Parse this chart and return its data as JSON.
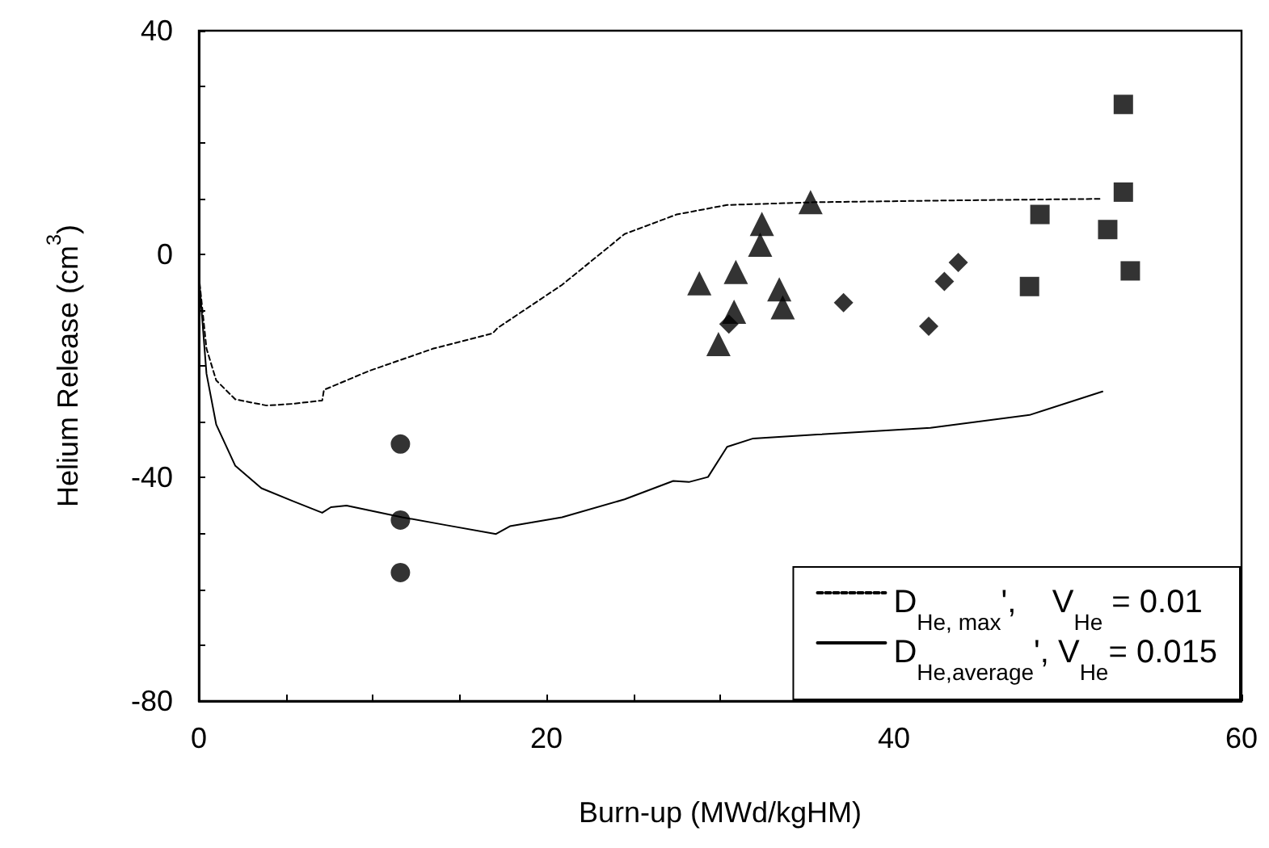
{
  "chart_data": {
    "type": "scatter",
    "xlabel": "Burn-up (MWd/kgHM)",
    "ylabel": "Helium Release (cm$^{3}$)",
    "xlim": [
      0,
      60
    ],
    "xticks": [
      0,
      {
        "value": 5,
        "label": null
      },
      {
        "value": 10,
        "label": null
      },
      {
        "value": 15,
        "label": null
      },
      20,
      {
        "value": 25,
        "label": null
      },
      {
        "value": 30,
        "label": null
      },
      {
        "value": 35,
        "label": null
      },
      40,
      {
        "value": 45,
        "label": null
      },
      {
        "value": 50,
        "label": null
      },
      {
        "value": 55,
        "label": null
      },
      60
    ],
    "ylim": [
      -80,
      40
    ],
    "yticks": [
      -80,
      {
        "value": -70,
        "label": null
      },
      {
        "value": -60,
        "label": null
      },
      {
        "value": -50,
        "label": null
      },
      -40,
      {
        "value": -30,
        "label": null
      },
      {
        "value": -20,
        "label": null
      },
      {
        "value": -10,
        "label": null
      },
      0,
      {
        "value": 10,
        "label": null
      },
      {
        "value": 20,
        "label": null
      },
      {
        "value": 30,
        "label": null
      },
      40
    ],
    "grid": false,
    "legend": "bottom right",
    "series": [
      {
        "type": "line",
        "name": "D$_{He, max}$',    V$_{He}$ = 0.01",
        "color": "#000000",
        "line_style": "dashed",
        "marker": "none",
        "x": [
          0,
          0.44,
          1.0,
          2.1,
          3.9,
          5.4,
          7.1,
          7.2,
          9.8,
          13.5,
          16.9,
          17.2,
          20.9,
          24.5,
          27.5,
          30.4,
          35.6,
          43,
          52
        ],
        "values": [
          -3.8,
          -16.9,
          -22.6,
          -26,
          -27.1,
          -26.8,
          -26.2,
          -24.3,
          -20.9,
          -16.9,
          -14.2,
          -13.2,
          -5.5,
          3.6,
          7.1,
          8.8,
          9.3,
          9.6,
          9.9
        ]
      },
      {
        "type": "line",
        "name": "D$_{He,average}$', V$_{He}$= 0.015",
        "color": "#000000",
        "line_style": "solid",
        "marker": "none",
        "x": [
          0,
          0.44,
          1.0,
          2.1,
          3.6,
          5.4,
          7.1,
          7.6,
          8.5,
          11.7,
          14.2,
          17.1,
          17.9,
          20.9,
          24.5,
          27.3,
          28.2,
          29.3,
          30.4,
          31.9,
          35.6,
          42.1,
          47.8,
          52
        ],
        "values": [
          -3.8,
          -21.4,
          -30.5,
          -37.9,
          -41.9,
          -44.2,
          -46.3,
          -45.3,
          -45,
          -47.1,
          -48.5,
          -50.1,
          -48.7,
          -47.1,
          -43.9,
          -40.6,
          -40.8,
          -39.9,
          -34.5,
          -33,
          -32.3,
          -31.1,
          -28.8,
          -24.6
        ]
      },
      {
        "color": "#000000",
        "marker": "circle",
        "x": [
          11.6,
          11.6,
          11.6
        ],
        "values": [
          -34,
          -47.6,
          -57
        ]
      },
      {
        "color": "#000000",
        "marker": "triangle",
        "x": [
          28.8,
          30.9,
          32.4,
          32.3,
          35.2,
          33.4,
          33.6,
          30.8,
          29.9
        ],
        "values": [
          -5.2,
          -3.2,
          5.4,
          1.7,
          9.3,
          -6.3,
          -9.5,
          -10.3,
          -16.1
        ]
      },
      {
        "color": "#000000",
        "marker": "diamond",
        "x": [
          30.5,
          37.1,
          42.0,
          42.9,
          43.7
        ],
        "values": [
          -12.5,
          -8.7,
          -12.9,
          -4.9,
          -1.5
        ]
      },
      {
        "color": "#000000",
        "marker": "square",
        "x": [
          53.2,
          53.2,
          48.4,
          52.3,
          53.6,
          47.8
        ],
        "values": [
          26.8,
          11.1,
          7.1,
          4.4,
          -3.0,
          -5.8
        ]
      }
    ]
  }
}
